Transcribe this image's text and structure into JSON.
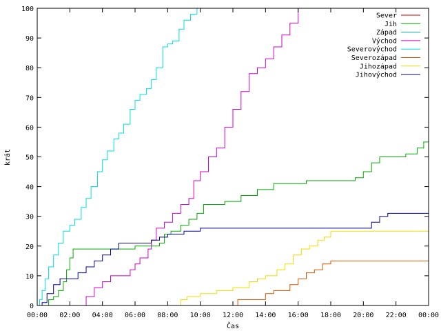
{
  "chart_data": {
    "type": "line",
    "title": "",
    "xlabel": "Čas",
    "ylabel": "krát",
    "xlim": [
      0,
      24
    ],
    "ylim": [
      0,
      100
    ],
    "x_unit": "hours",
    "x_ticks": [
      {
        "value": 0,
        "label": "00:00"
      },
      {
        "value": 2,
        "label": "02:00"
      },
      {
        "value": 4,
        "label": "04:00"
      },
      {
        "value": 6,
        "label": "06:00"
      },
      {
        "value": 8,
        "label": "08:00"
      },
      {
        "value": 10,
        "label": "10:00"
      },
      {
        "value": 12,
        "label": "12:00"
      },
      {
        "value": 14,
        "label": "14:00"
      },
      {
        "value": 16,
        "label": "16:00"
      },
      {
        "value": 18,
        "label": "18:00"
      },
      {
        "value": 20,
        "label": "20:00"
      },
      {
        "value": 22,
        "label": "22:00"
      },
      {
        "value": 24,
        "label": "00:00"
      }
    ],
    "y_ticks": [
      {
        "value": 0,
        "label": "0"
      },
      {
        "value": 10,
        "label": "10"
      },
      {
        "value": 20,
        "label": "20"
      },
      {
        "value": 30,
        "label": "30"
      },
      {
        "value": 40,
        "label": "40"
      },
      {
        "value": 50,
        "label": "50"
      },
      {
        "value": 60,
        "label": "60"
      },
      {
        "value": 70,
        "label": "70"
      },
      {
        "value": 80,
        "label": "80"
      },
      {
        "value": 90,
        "label": "90"
      },
      {
        "value": 100,
        "label": "100"
      }
    ],
    "grid": false,
    "legend": "top-right",
    "series": [
      {
        "name": "Sever",
        "color": "#cc0000",
        "points": []
      },
      {
        "name": "Jih",
        "color": "#00aa00",
        "points": [
          [
            0.6,
            0
          ],
          [
            0.7,
            2
          ],
          [
            1.0,
            3
          ],
          [
            1.3,
            5
          ],
          [
            1.6,
            8
          ],
          [
            1.8,
            12
          ],
          [
            2.0,
            16
          ],
          [
            2.2,
            19
          ],
          [
            3.0,
            19
          ],
          [
            4.0,
            19
          ],
          [
            5.0,
            19
          ],
          [
            6.0,
            20
          ],
          [
            7.0,
            20
          ],
          [
            7.5,
            21
          ],
          [
            7.8,
            24
          ],
          [
            8.2,
            25
          ],
          [
            8.8,
            27
          ],
          [
            9.3,
            29
          ],
          [
            9.8,
            31
          ],
          [
            10.2,
            34
          ],
          [
            11.0,
            34
          ],
          [
            11.5,
            35
          ],
          [
            12.5,
            37
          ],
          [
            13.5,
            39
          ],
          [
            14.5,
            41
          ],
          [
            15.5,
            41
          ],
          [
            16.5,
            42
          ],
          [
            17.5,
            42
          ],
          [
            18.5,
            42
          ],
          [
            19.5,
            43
          ],
          [
            20.0,
            45
          ],
          [
            20.5,
            48
          ],
          [
            21.0,
            50
          ],
          [
            22.0,
            50
          ],
          [
            22.6,
            51
          ],
          [
            23.3,
            53
          ],
          [
            23.7,
            55
          ],
          [
            24.0,
            57
          ]
        ]
      },
      {
        "name": "Západ",
        "color": "#00a0a0",
        "points": []
      },
      {
        "name": "Východ",
        "color": "#cc00cc",
        "points": [
          [
            2.8,
            0
          ],
          [
            3.0,
            3
          ],
          [
            3.5,
            6
          ],
          [
            4.0,
            8
          ],
          [
            4.5,
            10
          ],
          [
            5.2,
            10
          ],
          [
            5.7,
            12
          ],
          [
            6.0,
            14
          ],
          [
            6.3,
            16
          ],
          [
            6.8,
            19
          ],
          [
            7.0,
            22
          ],
          [
            7.3,
            26
          ],
          [
            7.8,
            28
          ],
          [
            8.3,
            31
          ],
          [
            8.8,
            34
          ],
          [
            9.3,
            36
          ],
          [
            9.6,
            42
          ],
          [
            10.0,
            45
          ],
          [
            10.5,
            50
          ],
          [
            11.0,
            53
          ],
          [
            11.5,
            60
          ],
          [
            12.0,
            66
          ],
          [
            12.5,
            72
          ],
          [
            13.0,
            78
          ],
          [
            13.5,
            80
          ],
          [
            14.0,
            83
          ],
          [
            14.5,
            87
          ],
          [
            15.0,
            91
          ],
          [
            15.5,
            95
          ],
          [
            16.0,
            100
          ]
        ]
      },
      {
        "name": "Severovýchod",
        "color": "#00dddd",
        "points": [
          [
            0,
            0
          ],
          [
            0.15,
            2
          ],
          [
            0.3,
            5
          ],
          [
            0.5,
            9
          ],
          [
            0.7,
            13
          ],
          [
            1.0,
            17
          ],
          [
            1.3,
            21
          ],
          [
            1.6,
            25
          ],
          [
            2.0,
            27
          ],
          [
            2.3,
            29
          ],
          [
            2.7,
            33
          ],
          [
            3.0,
            36
          ],
          [
            3.3,
            40
          ],
          [
            3.7,
            45
          ],
          [
            4.0,
            49
          ],
          [
            4.3,
            52
          ],
          [
            4.7,
            56
          ],
          [
            5.0,
            58
          ],
          [
            5.3,
            61
          ],
          [
            5.7,
            66
          ],
          [
            6.0,
            69
          ],
          [
            6.3,
            71
          ],
          [
            6.7,
            73
          ],
          [
            7.0,
            76
          ],
          [
            7.3,
            80
          ],
          [
            7.7,
            87
          ],
          [
            8.0,
            88
          ],
          [
            8.3,
            89
          ],
          [
            8.7,
            93
          ],
          [
            9.0,
            96
          ],
          [
            9.4,
            98
          ],
          [
            9.8,
            100
          ],
          [
            10.3,
            100
          ]
        ]
      },
      {
        "name": "Severozápad",
        "color": "#cc5500",
        "points": [
          [
            12.1,
            0
          ],
          [
            12.3,
            2
          ],
          [
            13.0,
            2
          ],
          [
            14.0,
            4
          ],
          [
            14.5,
            5
          ],
          [
            15.5,
            7
          ],
          [
            16.0,
            9
          ],
          [
            16.5,
            11
          ],
          [
            17.0,
            12
          ],
          [
            17.5,
            14
          ],
          [
            18.0,
            15
          ],
          [
            19.0,
            15
          ],
          [
            20.0,
            15
          ],
          [
            21.0,
            15
          ],
          [
            22.0,
            15
          ],
          [
            23.0,
            15
          ],
          [
            24.0,
            15
          ]
        ]
      },
      {
        "name": "Jihozápad",
        "color": "#eedd00",
        "points": [
          [
            8.6,
            0
          ],
          [
            8.8,
            2
          ],
          [
            9.2,
            3
          ],
          [
            10.0,
            4
          ],
          [
            11.0,
            5
          ],
          [
            12.0,
            6
          ],
          [
            13.0,
            8
          ],
          [
            13.5,
            9
          ],
          [
            14.0,
            10
          ],
          [
            14.7,
            12
          ],
          [
            15.2,
            14
          ],
          [
            15.7,
            17
          ],
          [
            16.2,
            19
          ],
          [
            16.7,
            20
          ],
          [
            17.2,
            22
          ],
          [
            17.6,
            23
          ],
          [
            18.0,
            25
          ],
          [
            19.0,
            25
          ],
          [
            20.0,
            25
          ],
          [
            21.0,
            25
          ],
          [
            22.0,
            25
          ],
          [
            23.0,
            25
          ],
          [
            24.0,
            25
          ]
        ]
      },
      {
        "name": "Jihovýchod",
        "color": "#000099",
        "points": [
          [
            0.2,
            0
          ],
          [
            0.3,
            1
          ],
          [
            0.6,
            4
          ],
          [
            1.0,
            7
          ],
          [
            1.4,
            9
          ],
          [
            2.0,
            9
          ],
          [
            2.5,
            11
          ],
          [
            3.0,
            13
          ],
          [
            3.5,
            15
          ],
          [
            4.0,
            17
          ],
          [
            4.5,
            19
          ],
          [
            5.0,
            21
          ],
          [
            6.0,
            21
          ],
          [
            6.5,
            21
          ],
          [
            7.0,
            22
          ],
          [
            7.5,
            23
          ],
          [
            8.0,
            24
          ],
          [
            9.0,
            25
          ],
          [
            10.0,
            26
          ],
          [
            12.0,
            26
          ],
          [
            14.0,
            26
          ],
          [
            16.0,
            26
          ],
          [
            18.0,
            26
          ],
          [
            20.0,
            26
          ],
          [
            20.5,
            28
          ],
          [
            21.0,
            30
          ],
          [
            21.5,
            31
          ],
          [
            22.5,
            31
          ],
          [
            24.0,
            31
          ]
        ]
      }
    ]
  }
}
